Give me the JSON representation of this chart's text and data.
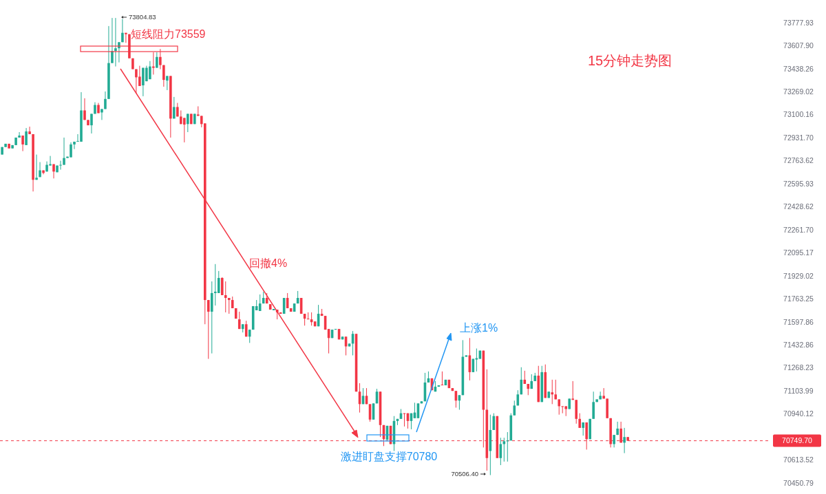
{
  "chart_data": {
    "type": "candlestick",
    "title": "15分钟走势图",
    "categories": [
      null,
      null,
      null,
      null,
      null,
      null,
      null,
      null,
      null,
      null,
      null,
      null,
      null,
      null,
      null,
      null,
      null,
      null,
      null,
      null,
      null,
      null,
      null,
      null,
      null,
      null,
      null,
      null,
      null,
      null,
      null,
      null,
      null,
      null,
      null,
      null,
      null,
      null,
      null,
      null,
      null,
      null,
      null,
      null,
      null,
      null,
      null,
      null,
      null,
      null,
      null,
      null,
      null,
      null,
      null,
      null,
      null,
      null,
      null,
      null,
      null,
      null,
      null,
      null,
      null,
      null,
      null,
      null,
      null,
      null,
      null,
      null,
      null,
      null,
      null,
      null,
      null,
      null,
      null,
      null,
      null,
      null,
      null,
      null,
      null,
      null,
      null,
      null,
      null,
      null,
      null,
      null,
      null,
      null,
      null,
      null,
      null,
      null,
      null,
      null,
      null,
      null,
      null,
      null,
      null,
      null,
      null,
      null,
      null,
      null,
      null,
      null,
      null,
      null,
      null,
      null,
      null,
      null,
      null,
      null,
      null,
      null,
      null,
      null,
      null,
      null,
      null,
      null,
      null,
      null,
      null,
      null,
      null,
      null,
      null,
      null,
      null,
      null,
      null,
      null,
      null,
      null,
      null,
      null,
      null,
      null,
      null,
      null,
      null,
      null,
      null,
      null,
      null,
      null,
      null,
      null,
      null,
      null,
      null,
      null,
      null,
      null,
      null,
      null,
      null,
      null,
      null,
      null,
      null,
      null,
      null,
      null,
      null,
      null,
      null,
      null,
      null,
      null,
      null,
      null,
      null,
      null,
      null,
      null,
      null,
      null,
      null,
      null,
      null,
      null,
      null,
      null,
      null,
      null,
      null,
      null,
      null,
      null,
      null,
      null,
      null,
      null,
      null,
      null,
      null,
      null,
      null,
      null,
      null,
      null,
      null,
      null,
      null,
      null,
      null,
      null,
      null,
      null,
      null,
      null,
      null,
      null,
      null,
      null
    ],
    "ohlc": [
      [
        72809,
        72864,
        72809,
        72864
      ],
      [
        72864,
        72888,
        72864,
        72888
      ],
      [
        72888,
        72888,
        72854,
        72854
      ],
      [
        72854,
        72878,
        72854,
        72878
      ],
      [
        72878,
        72933,
        72878,
        72933
      ],
      [
        72933,
        72973,
        72933,
        72948
      ],
      [
        72948,
        72948,
        72834,
        72883
      ],
      [
        72878,
        73003,
        72878,
        72978
      ],
      [
        72978,
        73013,
        72958,
        72958
      ],
      [
        72958,
        72958,
        72540,
        72625
      ],
      [
        72625,
        72809,
        72625,
        72640
      ],
      [
        72645,
        72754,
        72645,
        72694
      ],
      [
        72694,
        72694,
        72665,
        72675
      ],
      [
        72685,
        72759,
        72685,
        72734
      ],
      [
        72729,
        72799,
        72729,
        72739
      ],
      [
        72739,
        72739,
        72635,
        72685
      ],
      [
        72680,
        72729,
        72680,
        72729
      ],
      [
        72729,
        72764,
        72699,
        72734
      ],
      [
        72734,
        72933,
        72734,
        72784
      ],
      [
        72784,
        72794,
        72784,
        72794
      ],
      [
        72789,
        72898,
        72789,
        72883
      ],
      [
        72883,
        72903,
        72849,
        72903
      ],
      [
        72903,
        72958,
        72903,
        72908
      ],
      [
        72903,
        73266,
        72903,
        73132
      ],
      [
        73132,
        73221,
        73062,
        73062
      ],
      [
        73062,
        73062,
        73023,
        73023
      ],
      [
        73023,
        73107,
        72963,
        73107
      ],
      [
        73107,
        73192,
        73107,
        73172
      ],
      [
        73172,
        73187,
        73112,
        73112
      ],
      [
        73117,
        73142,
        73062,
        73142
      ],
      [
        73142,
        73271,
        73142,
        73216
      ],
      [
        73216,
        73753,
        73216,
        73480
      ],
      [
        73480,
        73813,
        73480,
        73569
      ],
      [
        73569,
        73813,
        73455,
        73589
      ],
      [
        73589,
        73634,
        73485,
        73634
      ],
      [
        73634,
        73804.83,
        73634,
        73703
      ],
      [
        73703,
        73703,
        73629,
        73693
      ],
      [
        73693,
        73693,
        73515,
        73515
      ],
      [
        73515,
        73515,
        73435,
        73435
      ],
      [
        73435,
        73435,
        73256,
        73375
      ],
      [
        73380,
        73460,
        73311,
        73311
      ],
      [
        73316,
        73445,
        73236,
        73445
      ],
      [
        73346,
        73460,
        73346,
        73445
      ],
      [
        73361,
        73495,
        73361,
        73455
      ],
      [
        73455,
        73559,
        73395,
        73445
      ],
      [
        73445,
        73559,
        73445,
        73525
      ],
      [
        73525,
        73584,
        73435,
        73465
      ],
      [
        73465,
        73465,
        73306,
        73356
      ],
      [
        73351,
        73385,
        73281,
        73385
      ],
      [
        73385,
        73385,
        72933,
        73072
      ],
      [
        73072,
        73231,
        73072,
        73157
      ],
      [
        73157,
        73187,
        73087,
        73087
      ],
      [
        73087,
        73132,
        73032,
        73032
      ],
      [
        73077,
        73077,
        72898,
        73028
      ],
      [
        73032,
        73107,
        72973,
        73107
      ],
      [
        73107,
        73107,
        73032,
        73032
      ],
      [
        73032,
        73107,
        73032,
        73107
      ],
      [
        73102,
        73162,
        73092,
        73092
      ],
      [
        73092,
        73092,
        73008,
        73032
      ],
      [
        73037,
        73037,
        71581,
        71755
      ],
      [
        71755,
        71755,
        71333,
        71671
      ],
      [
        71671,
        71889,
        71372,
        71805
      ],
      [
        71805,
        72014,
        71715,
        71815
      ],
      [
        71805,
        71964,
        71805,
        71914
      ],
      [
        71914,
        71919,
        71790,
        71790
      ],
      [
        71790,
        71889,
        71666,
        71770
      ],
      [
        71770,
        71770,
        71656,
        71755
      ],
      [
        71755,
        71780,
        71696,
        71696
      ],
      [
        71696,
        71696,
        71621,
        71621
      ],
      [
        71616,
        71671,
        71547,
        71547
      ],
      [
        71547,
        71581,
        71522,
        71581
      ],
      [
        71581,
        71606,
        71492,
        71492
      ],
      [
        71492,
        71542,
        71447,
        71542
      ],
      [
        71542,
        71711,
        71542,
        71711
      ],
      [
        71681,
        71755,
        71681,
        71711
      ],
      [
        71676,
        71795,
        71676,
        71730
      ],
      [
        71730,
        71815,
        71730,
        71770
      ],
      [
        71770,
        71805,
        71730,
        71730
      ],
      [
        71725,
        71725,
        71686,
        71686
      ],
      [
        71681,
        71691,
        71681,
        71691
      ],
      [
        71686,
        71686,
        71616,
        71666
      ],
      [
        71666,
        71666,
        71656,
        71656
      ],
      [
        71656,
        71770,
        71656,
        71770
      ],
      [
        71770,
        71805,
        71696,
        71696
      ],
      [
        71696,
        71696,
        71671,
        71671
      ],
      [
        71671,
        71730,
        71671,
        71730
      ],
      [
        71730,
        71820,
        71730,
        71770
      ],
      [
        71770,
        71770,
        71656,
        71656
      ],
      [
        71656,
        71656,
        71571,
        71621
      ],
      [
        71621,
        71666,
        71616,
        71616
      ],
      [
        71616,
        71666,
        71571,
        71596
      ],
      [
        71601,
        71601,
        71566,
        71566
      ],
      [
        71566,
        71720,
        71566,
        71656
      ],
      [
        71656,
        71691,
        71641,
        71641
      ],
      [
        71641,
        71641,
        71542,
        71542
      ],
      [
        71547,
        71547,
        71372,
        71482
      ],
      [
        71482,
        71542,
        71482,
        71542
      ],
      [
        71542,
        71547,
        71542,
        71547
      ],
      [
        71547,
        71547,
        71472,
        71472
      ],
      [
        71472,
        71492,
        71472,
        71492
      ],
      [
        71492,
        71492,
        71358,
        71422
      ],
      [
        71422,
        71442,
        71422,
        71442
      ],
      [
        71442,
        71532,
        71358,
        71512
      ],
      [
        71512,
        71512,
        71099,
        71099
      ],
      [
        71099,
        71159,
        70950,
        71010
      ],
      [
        71010,
        71124,
        71010,
        71069
      ],
      [
        71069,
        71124,
        71010,
        71010
      ],
      [
        71010,
        71010,
        70885,
        70900
      ],
      [
        70900,
        71015,
        70900,
        71015
      ],
      [
        71015,
        71119,
        71015,
        71099
      ],
      [
        71099,
        71099,
        70776,
        70861
      ],
      [
        70861,
        70861,
        70712,
        70761
      ],
      [
        70756,
        70856,
        70756,
        70856
      ],
      [
        70856,
        70856,
        70726,
        70726
      ],
      [
        70726,
        70925,
        70677,
        70890
      ],
      [
        70890,
        70905,
        70861,
        70905
      ],
      [
        70905,
        70975,
        70905,
        70945
      ],
      [
        70945,
        70945,
        70851,
        70940
      ],
      [
        70945,
        70945,
        70836,
        70890
      ],
      [
        70890,
        70945,
        70831,
        70945
      ],
      [
        70910,
        71020,
        70910,
        70950
      ],
      [
        70910,
        71015,
        70910,
        71015
      ],
      [
        71015,
        71030,
        71015,
        71030
      ],
      [
        71030,
        71233,
        71030,
        71164
      ],
      [
        71164,
        71243,
        71164,
        71194
      ],
      [
        71194,
        71194,
        71109,
        71109
      ],
      [
        71099,
        71174,
        71099,
        71134
      ],
      [
        71134,
        71144,
        71134,
        71144
      ],
      [
        71149,
        71243,
        71144,
        71144
      ],
      [
        71144,
        71184,
        71144,
        71184
      ],
      [
        71184,
        71184,
        71124,
        71124
      ],
      [
        71124,
        71124,
        71104,
        71104
      ],
      [
        71104,
        71104,
        70985,
        71035
      ],
      [
        71035,
        71074,
        70970,
        71074
      ],
      [
        71074,
        71467,
        71074,
        71348
      ],
      [
        71348,
        71358,
        71348,
        71358
      ],
      [
        71358,
        71482,
        71179,
        71238
      ],
      [
        71238,
        71333,
        71238,
        71333
      ],
      [
        71328,
        71407,
        71243,
        71338
      ],
      [
        71333,
        71392,
        71333,
        71392
      ],
      [
        71392,
        71392,
        70702,
        70970
      ],
      [
        70970,
        71258,
        70538,
        70627
      ],
      [
        70677,
        70935,
        70506.4,
        70826
      ],
      [
        70826,
        70945,
        70826,
        70925
      ],
      [
        70925,
        70925,
        70627,
        70627
      ],
      [
        70627,
        70771,
        70577,
        70726
      ],
      [
        70726,
        70771,
        70602,
        70746
      ],
      [
        70746,
        70811,
        70602,
        70751
      ],
      [
        70751,
        70945,
        70751,
        70930
      ],
      [
        70930,
        71035,
        70930,
        71000
      ],
      [
        71000,
        71109,
        71000,
        71079
      ],
      [
        71079,
        71273,
        71079,
        71184
      ],
      [
        71184,
        71248,
        71154,
        71154
      ],
      [
        71154,
        71154,
        71074,
        71119
      ],
      [
        71119,
        71223,
        71119,
        71174
      ],
      [
        71174,
        71233,
        71174,
        71213
      ],
      [
        71213,
        71283,
        71025,
        71025
      ],
      [
        71025,
        71283,
        71025,
        71238
      ],
      [
        71238,
        71293,
        71054,
        71054
      ],
      [
        71054,
        71099,
        71054,
        71099
      ],
      [
        71094,
        71184,
        71010,
        71079
      ],
      [
        71079,
        71184,
        71044,
        71044
      ],
      [
        71044,
        71044,
        70935,
        70995
      ],
      [
        70995,
        70995,
        70945,
        70990
      ],
      [
        70995,
        70995,
        70925,
        70975
      ],
      [
        70975,
        71049,
        70975,
        71049
      ],
      [
        71049,
        71174,
        71040,
        71040
      ],
      [
        71040,
        71040,
        70871,
        70905
      ],
      [
        70905,
        70945,
        70841,
        70841
      ],
      [
        70841,
        70880,
        70786,
        70880
      ],
      [
        70880,
        70880,
        70687,
        70761
      ],
      [
        70761,
        70905,
        70761,
        70905
      ],
      [
        70905,
        71099,
        70905,
        71025
      ],
      [
        71025,
        71044,
        71025,
        71044
      ],
      [
        71044,
        71099,
        71044,
        71069
      ],
      [
        71069,
        71124,
        71049,
        71049
      ],
      [
        71049,
        71049,
        70910,
        70910
      ],
      [
        70910,
        70910,
        70702,
        70726
      ],
      [
        70726,
        70791,
        70702,
        70791
      ],
      [
        70791,
        70885,
        70791,
        70836
      ],
      [
        70836,
        70885,
        70736,
        70736
      ],
      [
        70736,
        70841,
        70662,
        70776
      ],
      [
        70776,
        70776,
        70749.7,
        70749.7
      ],
      null,
      null,
      null,
      null,
      null,
      null,
      null,
      null,
      null,
      null,
      null,
      null,
      null,
      null,
      null,
      null,
      null,
      null,
      null,
      null,
      null,
      null,
      null,
      null,
      null,
      null,
      null,
      null,
      null,
      null,
      null,
      null,
      null,
      null,
      null,
      null,
      null,
      null,
      null,
      null,
      null
    ],
    "colors": [
      "#22ab94",
      "#22ab94",
      "#f23645",
      "#22ab94",
      "#22ab94",
      "#22ab94",
      "#f23645",
      "#22ab94",
      "#f23645",
      "#f23645",
      "#22ab94",
      "#22ab94",
      "#f23645",
      "#22ab94",
      "#22ab94",
      "#f23645",
      "#22ab94",
      "#22ab94",
      "#22ab94",
      "#22ab94",
      "#22ab94",
      "#22ab94",
      "#22ab94",
      "#22ab94",
      "#f23645",
      "#f23645",
      "#22ab94",
      "#22ab94",
      "#f23645",
      "#22ab94",
      "#22ab94",
      "#22ab94",
      "#22ab94",
      "#22ab94",
      "#22ab94",
      "#22ab94",
      "#f23645",
      "#f23645",
      "#f23645",
      "#f23645",
      "#f23645",
      "#22ab94",
      "#22ab94",
      "#22ab94",
      "#f23645",
      "#22ab94",
      "#f23645",
      "#f23645",
      "#22ab94",
      "#f23645",
      "#22ab94",
      "#f23645",
      "#f23645",
      "#f23645",
      "#22ab94",
      "#f23645",
      "#22ab94",
      "#f23645",
      "#f23645",
      "#f23645",
      "#f23645",
      "#22ab94",
      "#22ab94",
      "#22ab94",
      "#f23645",
      "#f23645",
      "#f23645",
      "#f23645",
      "#f23645",
      "#f23645",
      "#22ab94",
      "#f23645",
      "#22ab94",
      "#22ab94",
      "#22ab94",
      "#22ab94",
      "#22ab94",
      "#f23645",
      "#f23645",
      "#22ab94",
      "#f23645",
      "#f23645",
      "#22ab94",
      "#f23645",
      "#f23645",
      "#22ab94",
      "#22ab94",
      "#f23645",
      "#f23645",
      "#f23645",
      "#f23645",
      "#f23645",
      "#22ab94",
      "#f23645",
      "#f23645",
      "#f23645",
      "#22ab94",
      "#22ab94",
      "#f23645",
      "#22ab94",
      "#f23645",
      "#22ab94",
      "#22ab94",
      "#f23645",
      "#f23645",
      "#22ab94",
      "#f23645",
      "#f23645",
      "#22ab94",
      "#22ab94",
      "#f23645",
      "#f23645",
      "#22ab94",
      "#f23645",
      "#22ab94",
      "#22ab94",
      "#22ab94",
      "#f23645",
      "#f23645",
      "#22ab94",
      "#22ab94",
      "#22ab94",
      "#22ab94",
      "#22ab94",
      "#22ab94",
      "#f23645",
      "#22ab94",
      "#22ab94",
      "#f23645",
      "#22ab94",
      "#f23645",
      "#f23645",
      "#f23645",
      "#22ab94",
      "#22ab94",
      "#22ab94",
      "#f23645",
      "#22ab94",
      "#22ab94",
      "#22ab94",
      "#f23645",
      "#f23645",
      "#22ab94",
      "#22ab94",
      "#f23645",
      "#22ab94",
      "#22ab94",
      "#22ab94",
      "#22ab94",
      "#22ab94",
      "#22ab94",
      "#22ab94",
      "#f23645",
      "#f23645",
      "#22ab94",
      "#22ab94",
      "#f23645",
      "#22ab94",
      "#f23645",
      "#22ab94",
      "#f23645",
      "#f23645",
      "#f23645",
      "#f23645",
      "#f23645",
      "#22ab94",
      "#f23645",
      "#f23645",
      "#f23645",
      "#22ab94",
      "#f23645",
      "#22ab94",
      "#22ab94",
      "#22ab94",
      "#22ab94",
      "#f23645",
      "#f23645",
      "#f23645",
      "#22ab94",
      "#22ab94",
      "#f23645",
      "#22ab94",
      "#f23645",
      null,
      null,
      null,
      null,
      null,
      null,
      null,
      null,
      null,
      null,
      null,
      null,
      null,
      null,
      null,
      null,
      null,
      null,
      null,
      null,
      null,
      null,
      null,
      null,
      null,
      null,
      null,
      null,
      null,
      null,
      null,
      null,
      null,
      null,
      null,
      null,
      null,
      null,
      null,
      null,
      null
    ],
    "ylim": [
      70373,
      73946
    ],
    "log": "y",
    "yticks": [
      73777.93,
      {
        "value": 73607.9,
        "label": "73607.90"
      },
      73438.26,
      73269.02,
      73100.16,
      {
        "value": 72931.7,
        "label": "72931.70"
      },
      72763.62,
      72595.93,
      72428.62,
      {
        "value": 72261.7,
        "label": "72261.70"
      },
      72095.17,
      71929.02,
      71763.25,
      71597.86,
      71432.86,
      71268.23,
      71103.99,
      70940.12,
      70613.52,
      70450.79
    ],
    "tick_labels": "y",
    "ref_lines": [
      {
        "axis": "y",
        "value": 70749.7,
        "label": "70749.70",
        "color": "#f23645",
        "line_style": "dashed"
      }
    ],
    "annotations": [
      "短线阻力73559",
      "激进盯盘支撑70780",
      "回撤4%",
      "上涨1%",
      "73804.83",
      "70506.40"
    ]
  }
}
